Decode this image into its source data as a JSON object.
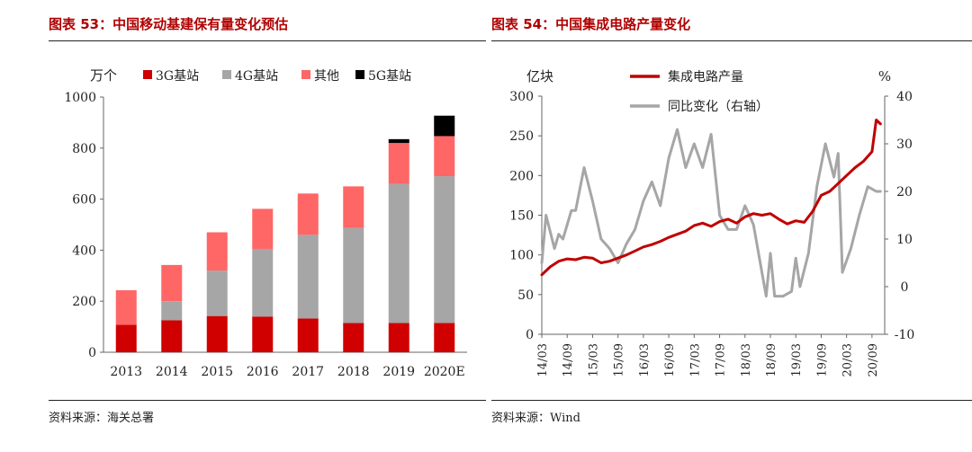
{
  "figures": {
    "left": {
      "title": "图表 53：中国移动基建保有量变化预估",
      "source": "资料来源：海关总署"
    },
    "right": {
      "title": "图表 54：中国集成电路产量变化",
      "source": "资料来源：Wind"
    }
  },
  "chart_data": [
    {
      "type": "bar",
      "stacked": true,
      "ylabel": "万个",
      "ylim": [
        0,
        1000
      ],
      "yticks": [
        0,
        200,
        400,
        600,
        800,
        1000
      ],
      "categories": [
        "2013",
        "2014",
        "2015",
        "2016",
        "2017",
        "2018",
        "2019",
        "2020E"
      ],
      "legend_placement": "top",
      "series": [
        {
          "name": "3G基站",
          "color": "#d00000",
          "values": [
            108,
            125,
            142,
            140,
            132,
            115,
            115,
            115
          ]
        },
        {
          "name": "4G基站",
          "color": "#a6a6a6",
          "values": [
            0,
            75,
            178,
            265,
            328,
            372,
            545,
            575
          ]
        },
        {
          "name": "其他",
          "color": "#ff6666",
          "values": [
            135,
            142,
            150,
            157,
            162,
            163,
            160,
            157
          ]
        },
        {
          "name": "5G基站",
          "color": "#000000",
          "values": [
            0,
            0,
            0,
            0,
            0,
            0,
            15,
            80
          ]
        }
      ]
    },
    {
      "type": "line",
      "ylabel_left": "亿块",
      "ylabel_right": "%",
      "ylim_left": [
        0,
        300
      ],
      "yticks_left": [
        0,
        50,
        100,
        150,
        200,
        250,
        300
      ],
      "ylim_right": [
        -10,
        40
      ],
      "yticks_right": [
        -10,
        0,
        10,
        20,
        30,
        40
      ],
      "xlim": [
        "2014-03",
        "2020-12"
      ],
      "xticks": [
        "14/03",
        "14/09",
        "15/03",
        "15/09",
        "16/03",
        "16/09",
        "17/03",
        "17/09",
        "18/03",
        "18/09",
        "19/03",
        "19/09",
        "20/03",
        "20/09"
      ],
      "legend_placement": "top",
      "series": [
        {
          "name": "集成电路产量",
          "axis": "left",
          "color": "#c00000",
          "points": [
            [
              "2014-03",
              75
            ],
            [
              "2014-05",
              85
            ],
            [
              "2014-07",
              92
            ],
            [
              "2014-09",
              95
            ],
            [
              "2014-11",
              94
            ],
            [
              "2015-01",
              97
            ],
            [
              "2015-03",
              96
            ],
            [
              "2015-05",
              90
            ],
            [
              "2015-07",
              92
            ],
            [
              "2015-09",
              96
            ],
            [
              "2015-11",
              100
            ],
            [
              "2016-01",
              105
            ],
            [
              "2016-03",
              110
            ],
            [
              "2016-05",
              113
            ],
            [
              "2016-07",
              117
            ],
            [
              "2016-09",
              122
            ],
            [
              "2016-11",
              126
            ],
            [
              "2017-01",
              130
            ],
            [
              "2017-03",
              137
            ],
            [
              "2017-05",
              140
            ],
            [
              "2017-07",
              136
            ],
            [
              "2017-09",
              142
            ],
            [
              "2017-11",
              145
            ],
            [
              "2018-01",
              140
            ],
            [
              "2018-03",
              148
            ],
            [
              "2018-05",
              152
            ],
            [
              "2018-07",
              150
            ],
            [
              "2018-09",
              152
            ],
            [
              "2018-11",
              145
            ],
            [
              "2019-01",
              139
            ],
            [
              "2019-03",
              143
            ],
            [
              "2019-05",
              141
            ],
            [
              "2019-07",
              155
            ],
            [
              "2019-09",
              175
            ],
            [
              "2019-11",
              180
            ],
            [
              "2020-01",
              190
            ],
            [
              "2020-03",
              200
            ],
            [
              "2020-05",
              210
            ],
            [
              "2020-07",
              218
            ],
            [
              "2020-09",
              230
            ],
            [
              "2020-10",
              270
            ],
            [
              "2020-11",
              265
            ]
          ]
        },
        {
          "name": "同比变化（右轴）",
          "axis": "right",
          "color": "#a6a6a6",
          "points": [
            [
              "2014-03",
              5
            ],
            [
              "2014-04",
              15
            ],
            [
              "2014-06",
              8
            ],
            [
              "2014-07",
              11
            ],
            [
              "2014-08",
              10
            ],
            [
              "2014-10",
              16
            ],
            [
              "2014-11",
              16
            ],
            [
              "2015-01",
              25
            ],
            [
              "2015-03",
              18
            ],
            [
              "2015-05",
              10
            ],
            [
              "2015-07",
              8
            ],
            [
              "2015-09",
              5
            ],
            [
              "2015-11",
              9
            ],
            [
              "2016-01",
              12
            ],
            [
              "2016-03",
              18
            ],
            [
              "2016-05",
              22
            ],
            [
              "2016-07",
              17
            ],
            [
              "2016-09",
              27
            ],
            [
              "2016-11",
              33
            ],
            [
              "2017-01",
              25
            ],
            [
              "2017-03",
              30
            ],
            [
              "2017-05",
              25
            ],
            [
              "2017-07",
              32
            ],
            [
              "2017-09",
              15
            ],
            [
              "2017-11",
              12
            ],
            [
              "2018-01",
              12
            ],
            [
              "2018-03",
              17
            ],
            [
              "2018-05",
              13
            ],
            [
              "2018-07",
              3
            ],
            [
              "2018-08",
              -2
            ],
            [
              "2018-09",
              7
            ],
            [
              "2018-10",
              -2
            ],
            [
              "2018-12",
              -2
            ],
            [
              "2019-02",
              -1
            ],
            [
              "2019-03",
              6
            ],
            [
              "2019-04",
              0
            ],
            [
              "2019-06",
              7
            ],
            [
              "2019-08",
              21
            ],
            [
              "2019-10",
              30
            ],
            [
              "2019-12",
              23
            ],
            [
              "2020-01",
              28
            ],
            [
              "2020-02",
              3
            ],
            [
              "2020-04",
              8
            ],
            [
              "2020-06",
              15
            ],
            [
              "2020-08",
              21
            ],
            [
              "2020-10",
              20
            ],
            [
              "2020-11",
              20
            ]
          ]
        }
      ]
    }
  ]
}
